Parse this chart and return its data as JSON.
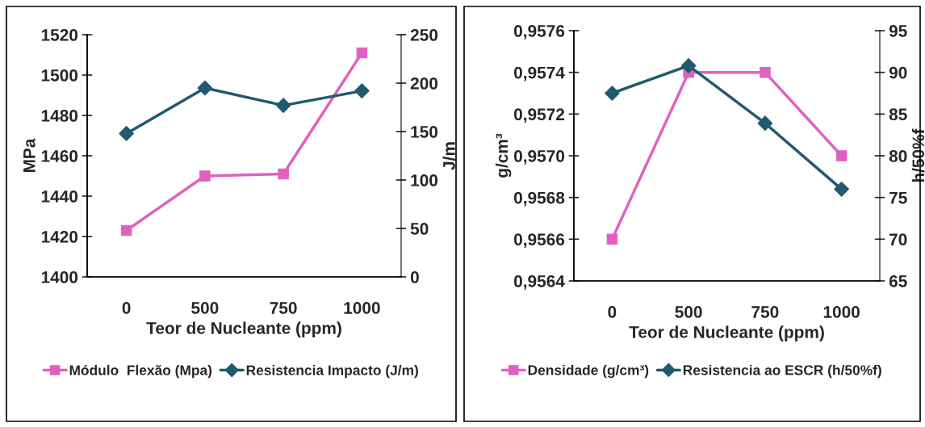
{
  "chart_data": [
    {
      "type": "line",
      "xlabel": "Teor de Nucleante (ppm)",
      "ylabel": "MPa",
      "y2label": "J/m",
      "categories": [
        "0",
        "500",
        "750",
        "1000"
      ],
      "series": [
        {
          "name": "Módulo  Flexão (Mpa)",
          "color": "#e060c0",
          "marker": "square",
          "values": [
            1423,
            1450,
            1451,
            1511
          ]
        },
        {
          "name": "Resistencia Impacto (J/m)",
          "color": "#1f5a6e",
          "marker": "diamond",
          "axis": "y2",
          "values": [
            148,
            195,
            177,
            192
          ]
        }
      ],
      "ylim": [
        1400,
        1520
      ],
      "yticks": [
        1400,
        1420,
        1440,
        1460,
        1480,
        1500,
        1520
      ],
      "y2lim": [
        0,
        250
      ],
      "y2ticks": [
        0,
        50,
        100,
        150,
        200,
        250
      ],
      "grid": false,
      "legend": "bottom",
      "line_style": "solid"
    },
    {
      "type": "line",
      "xlabel": "Teor de Nucleante (ppm)",
      "ylabel": "g/cm³",
      "y2label": "h/50%f",
      "categories": [
        "0",
        "500",
        "750",
        "1000"
      ],
      "series": [
        {
          "name": "Densidade (g/cm³)",
          "color": "#e060c0",
          "marker": "square",
          "values": [
            0.9566,
            0.9574,
            0.9574,
            0.957
          ]
        },
        {
          "name": "Resistencia ao ESCR (h/50%f)",
          "color": "#1f5a6e",
          "marker": "diamond",
          "axis": "y2",
          "values": [
            87.5,
            90.8,
            83.9,
            76.0
          ]
        }
      ],
      "ylim": [
        0.9564,
        0.9576
      ],
      "yticks": [
        {
          "value": 0.9564,
          "label": "0,9564"
        },
        {
          "value": 0.9566,
          "label": "0,9566"
        },
        {
          "value": 0.9568,
          "label": "0,9568"
        },
        {
          "value": 0.957,
          "label": "0,9570"
        },
        {
          "value": 0.9572,
          "label": "0,9572"
        },
        {
          "value": 0.9574,
          "label": "0,9574"
        },
        {
          "value": 0.9576,
          "label": "0,9576"
        }
      ],
      "y2lim": [
        65,
        95
      ],
      "y2ticks": [
        65,
        70,
        75,
        80,
        85,
        90,
        95
      ],
      "grid": false,
      "legend": "bottom",
      "line_style": "solid"
    }
  ]
}
